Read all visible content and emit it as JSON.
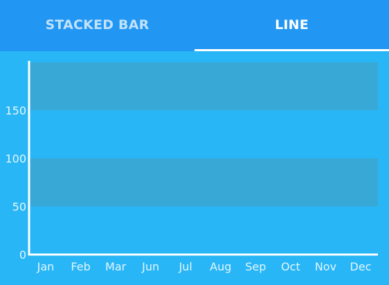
{
  "tabs": [
    {
      "label": "STACKED BAR",
      "active": false
    },
    {
      "label": "LINE",
      "active": true
    }
  ],
  "chart_data": {
    "type": "line",
    "title": "",
    "xlabel": "",
    "ylabel": "",
    "categories": [
      "Jan",
      "Feb",
      "Mar",
      "Jun",
      "Jul",
      "Aug",
      "Sep",
      "Oct",
      "Nov",
      "Dec"
    ],
    "series": [],
    "ylim": [
      0,
      200
    ],
    "yticks": [
      0,
      50,
      100,
      150
    ],
    "y_bands": [
      [
        50,
        100
      ],
      [
        150,
        200
      ]
    ],
    "grid": false
  },
  "colors": {
    "tabbar": "#2196f3",
    "background": "#29b6f6",
    "band": "#38a9d6",
    "axis": "#ffffff",
    "label": "#e3f6fe"
  }
}
